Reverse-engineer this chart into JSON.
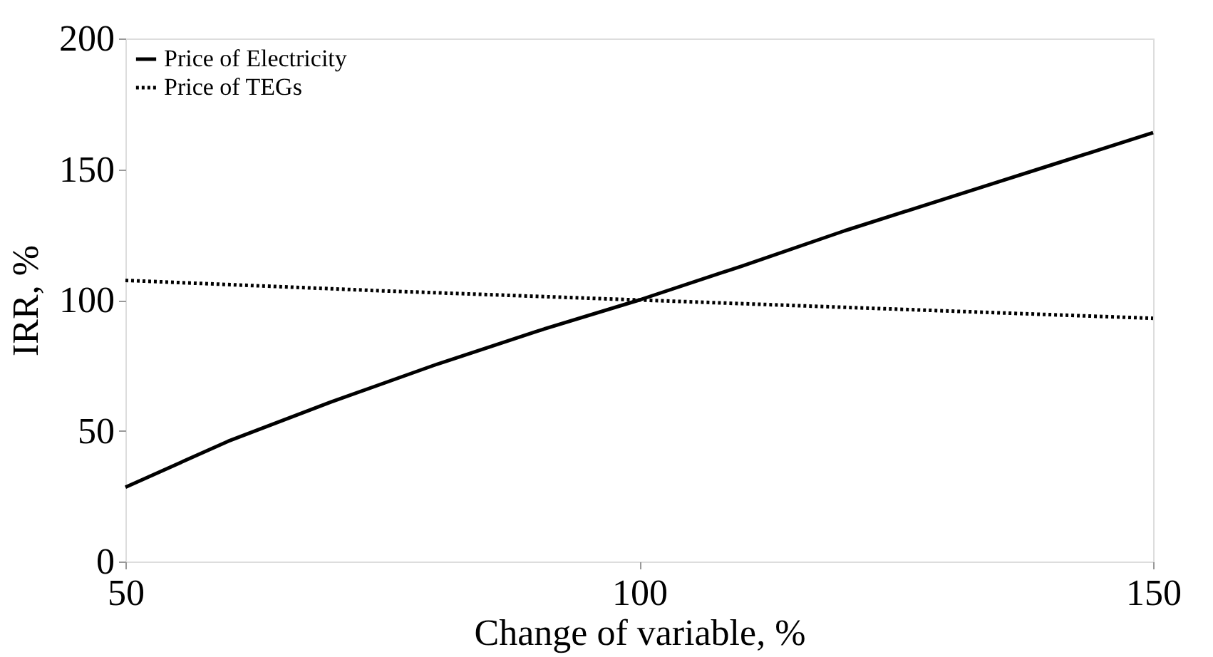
{
  "chart_data": {
    "type": "line",
    "xlabel": "Change of variable, %",
    "ylabel": "IRR, %",
    "x": [
      50,
      60,
      70,
      80,
      90,
      100,
      110,
      120,
      130,
      140,
      150
    ],
    "series": [
      {
        "name": "Price of Electricity",
        "color": "#000000",
        "line_style": "solid",
        "values": [
          28.4,
          46,
          61,
          75,
          88,
          100,
          113,
          126.5,
          139,
          151.5,
          164
        ]
      },
      {
        "name": "Price of TEGs",
        "color": "#000000",
        "line_style": "dotted",
        "x": [
          50,
          75,
          100,
          125,
          150
        ],
        "values": [
          107.5,
          103.5,
          100,
          96.5,
          93
        ]
      }
    ],
    "xlim": [
      50,
      150
    ],
    "xticks": [
      50,
      100,
      150
    ],
    "ylim": [
      0,
      200
    ],
    "yticks": [
      0,
      50,
      100,
      150,
      200
    ],
    "grid": false,
    "legend": "top left",
    "marker": "none"
  }
}
